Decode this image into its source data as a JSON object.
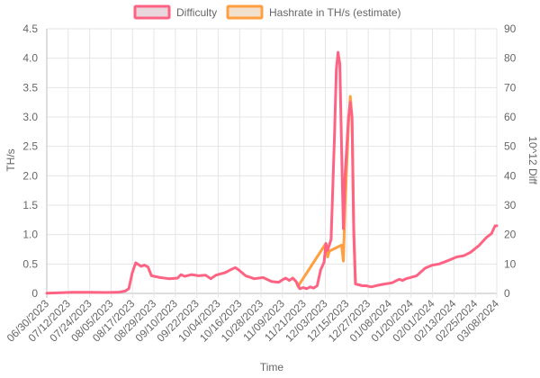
{
  "chart_data": {
    "type": "line",
    "title": "",
    "xlabel": "Time",
    "ylabel_left": "TH/s",
    "ylabel_right": "10^12 Diff",
    "ylim_left": [
      0,
      4.5
    ],
    "ylim_right": [
      0,
      90
    ],
    "yticks_left": [
      "0",
      "0.5",
      "1.0",
      "1.5",
      "2.0",
      "2.5",
      "3.0",
      "3.5",
      "4.0",
      "4.5"
    ],
    "yticks_right": [
      "0",
      "10",
      "20",
      "30",
      "40",
      "50",
      "60",
      "70",
      "80",
      "90"
    ],
    "xticks": [
      "06/30/2023",
      "07/12/2023",
      "07/24/2023",
      "08/05/2023",
      "08/17/2023",
      "08/29/2023",
      "09/10/2023",
      "09/22/2023",
      "10/04/2023",
      "10/16/2023",
      "10/28/2023",
      "11/09/2023",
      "11/21/2023",
      "12/03/2023",
      "12/15/2023",
      "12/27/2023",
      "01/08/2024",
      "01/20/2024",
      "02/01/2024",
      "02/13/2024",
      "02/25/2024",
      "03/08/2024"
    ],
    "xlim": [
      "2023-06-30",
      "2024-03-14"
    ],
    "grid": true,
    "legend_position": "top-center",
    "series": [
      {
        "name": "Difficulty",
        "axis": "right",
        "color": "#ff6384",
        "fill": "#e8d6dc",
        "points": [
          [
            "2023-06-30",
            0.1
          ],
          [
            "2023-07-08",
            0.2
          ],
          [
            "2023-07-15",
            0.4
          ],
          [
            "2023-07-24",
            0.4
          ],
          [
            "2023-08-03",
            0.3
          ],
          [
            "2023-08-10",
            0.4
          ],
          [
            "2023-08-14",
            0.8
          ],
          [
            "2023-08-16",
            1.6
          ],
          [
            "2023-08-18",
            7.0
          ],
          [
            "2023-08-20",
            10.4
          ],
          [
            "2023-08-21",
            10.0
          ],
          [
            "2023-08-23",
            9.2
          ],
          [
            "2023-08-25",
            9.6
          ],
          [
            "2023-08-27",
            9.0
          ],
          [
            "2023-08-29",
            6.0
          ],
          [
            "2023-09-03",
            5.4
          ],
          [
            "2023-09-08",
            5.0
          ],
          [
            "2023-09-13",
            5.2
          ],
          [
            "2023-09-15",
            6.4
          ],
          [
            "2023-09-17",
            5.8
          ],
          [
            "2023-09-21",
            6.4
          ],
          [
            "2023-09-25",
            6.0
          ],
          [
            "2023-09-29",
            6.2
          ],
          [
            "2023-10-02",
            5.0
          ],
          [
            "2023-10-05",
            6.2
          ],
          [
            "2023-10-10",
            7.0
          ],
          [
            "2023-10-14",
            8.2
          ],
          [
            "2023-10-16",
            8.8
          ],
          [
            "2023-10-18",
            8.0
          ],
          [
            "2023-10-22",
            6.0
          ],
          [
            "2023-10-27",
            5.0
          ],
          [
            "2023-11-01",
            5.4
          ],
          [
            "2023-11-06",
            4.0
          ],
          [
            "2023-11-10",
            3.8
          ],
          [
            "2023-11-12",
            4.6
          ],
          [
            "2023-11-14",
            5.2
          ],
          [
            "2023-11-16",
            4.4
          ],
          [
            "2023-11-18",
            5.2
          ],
          [
            "2023-11-20",
            4.0
          ],
          [
            "2023-11-22",
            1.6
          ],
          [
            "2023-11-24",
            2.0
          ],
          [
            "2023-11-26",
            1.6
          ],
          [
            "2023-11-28",
            2.2
          ],
          [
            "2023-11-30",
            1.8
          ],
          [
            "2023-12-02",
            2.6
          ],
          [
            "2023-12-04",
            8.0
          ],
          [
            "2023-12-06",
            10.6
          ],
          [
            "2023-12-07",
            17.0
          ],
          [
            "2023-12-08",
            14.6
          ],
          [
            "2023-12-10",
            18.4
          ],
          [
            "2023-12-12",
            55.0
          ],
          [
            "2023-12-13",
            76.0
          ],
          [
            "2023-12-14",
            82.0
          ],
          [
            "2023-12-15",
            78.0
          ],
          [
            "2023-12-16",
            50.0
          ],
          [
            "2023-12-17",
            22.0
          ],
          [
            "2023-12-18",
            40.0
          ],
          [
            "2023-12-20",
            60.0
          ],
          [
            "2023-12-21",
            65.0
          ],
          [
            "2023-12-22",
            60.0
          ],
          [
            "2023-12-23",
            20.0
          ],
          [
            "2023-12-24",
            3.2
          ],
          [
            "2023-12-28",
            2.6
          ],
          [
            "2023-12-30",
            2.6
          ],
          [
            "2024-01-02",
            2.2
          ],
          [
            "2024-01-06",
            2.8
          ],
          [
            "2024-01-10",
            3.2
          ],
          [
            "2024-01-14",
            3.6
          ],
          [
            "2024-01-18",
            4.8
          ],
          [
            "2024-01-20",
            4.4
          ],
          [
            "2024-01-22",
            5.0
          ],
          [
            "2024-01-28",
            6.0
          ],
          [
            "2024-02-02",
            8.6
          ],
          [
            "2024-02-06",
            9.6
          ],
          [
            "2024-02-10",
            10.0
          ],
          [
            "2024-02-16",
            11.4
          ],
          [
            "2024-02-20",
            12.4
          ],
          [
            "2024-02-24",
            12.8
          ],
          [
            "2024-02-28",
            14.0
          ],
          [
            "2024-03-04",
            16.4
          ],
          [
            "2024-03-08",
            19.0
          ],
          [
            "2024-03-11",
            20.4
          ],
          [
            "2024-03-13",
            23.0
          ],
          [
            "2024-03-14",
            23.0
          ]
        ]
      },
      {
        "name": "Hashrate in TH/s (estimate)",
        "axis": "left",
        "color": "#ff9f40",
        "fill": "#f0e0cc",
        "points": [
          [
            "2023-11-18",
            0.26
          ],
          [
            "2023-11-20",
            0.2
          ],
          [
            "2023-11-21",
            0.12
          ],
          [
            "2023-12-07",
            0.85
          ],
          [
            "2023-12-08",
            0.62
          ],
          [
            "2023-12-09",
            0.72
          ],
          [
            "2023-12-16",
            0.82
          ],
          [
            "2023-12-17",
            0.55
          ],
          [
            "2023-12-18",
            1.5
          ],
          [
            "2023-12-20",
            2.9
          ],
          [
            "2023-12-21",
            3.35
          ],
          [
            "2023-12-22",
            3.0
          ],
          [
            "2023-12-23",
            1.1
          ],
          [
            "2023-12-24",
            0.16
          ]
        ]
      }
    ]
  }
}
